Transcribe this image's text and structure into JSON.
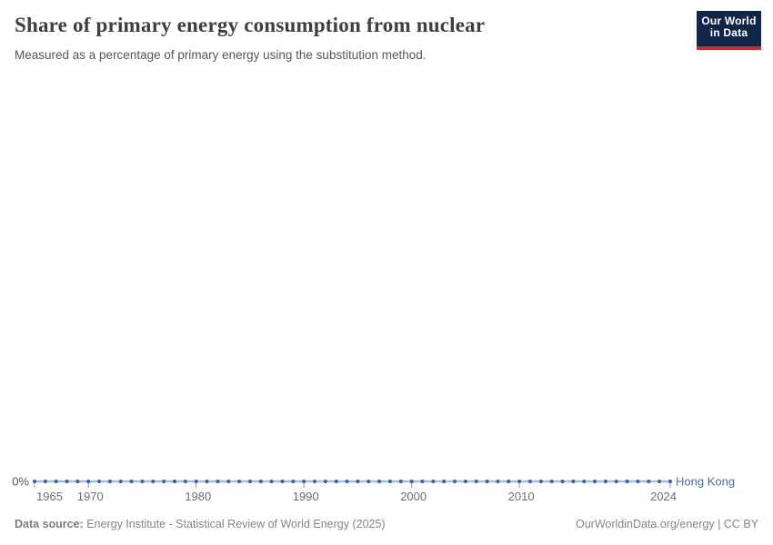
{
  "chart_data": {
    "type": "line",
    "title": "Share of primary energy consumption from nuclear",
    "subtitle": "Measured as a percentage of primary energy using the substitution method.",
    "x": [
      1965,
      1966,
      1967,
      1968,
      1969,
      1970,
      1971,
      1972,
      1973,
      1974,
      1975,
      1976,
      1977,
      1978,
      1979,
      1980,
      1981,
      1982,
      1983,
      1984,
      1985,
      1986,
      1987,
      1988,
      1989,
      1990,
      1991,
      1992,
      1993,
      1994,
      1995,
      1996,
      1997,
      1998,
      1999,
      2000,
      2001,
      2002,
      2003,
      2004,
      2005,
      2006,
      2007,
      2008,
      2009,
      2010,
      2011,
      2012,
      2013,
      2014,
      2015,
      2016,
      2017,
      2018,
      2019,
      2020,
      2021,
      2022,
      2023,
      2024
    ],
    "series": [
      {
        "name": "Hong Kong",
        "values": [
          0,
          0,
          0,
          0,
          0,
          0,
          0,
          0,
          0,
          0,
          0,
          0,
          0,
          0,
          0,
          0,
          0,
          0,
          0,
          0,
          0,
          0,
          0,
          0,
          0,
          0,
          0,
          0,
          0,
          0,
          0,
          0,
          0,
          0,
          0,
          0,
          0,
          0,
          0,
          0,
          0,
          0,
          0,
          0,
          0,
          0,
          0,
          0,
          0,
          0,
          0,
          0,
          0,
          0,
          0,
          0,
          0,
          0,
          0,
          0
        ]
      }
    ],
    "x_ticks": [
      1965,
      1970,
      1980,
      1990,
      2000,
      2010,
      2024
    ],
    "y_zero_label": "0%",
    "xlabel": "",
    "ylabel": "",
    "ylim": [
      0,
      null
    ],
    "grid": false,
    "legend_position": "end-of-line",
    "colors": {
      "line": "#a2bedf",
      "marker": "#3c63a4",
      "series_label": "#4d6ea8",
      "tick": "#9a9a9a",
      "axis_text": "#6e6e6e",
      "zero_label": "#555555"
    }
  },
  "logo": {
    "line1": "Our World",
    "line2": "in Data"
  },
  "footer": {
    "data_source_label": "Data source:",
    "data_source_value": " Energy Institute - Statistical Review of World Energy (2025)",
    "attribution": "OurWorldinData.org/energy | CC BY"
  }
}
